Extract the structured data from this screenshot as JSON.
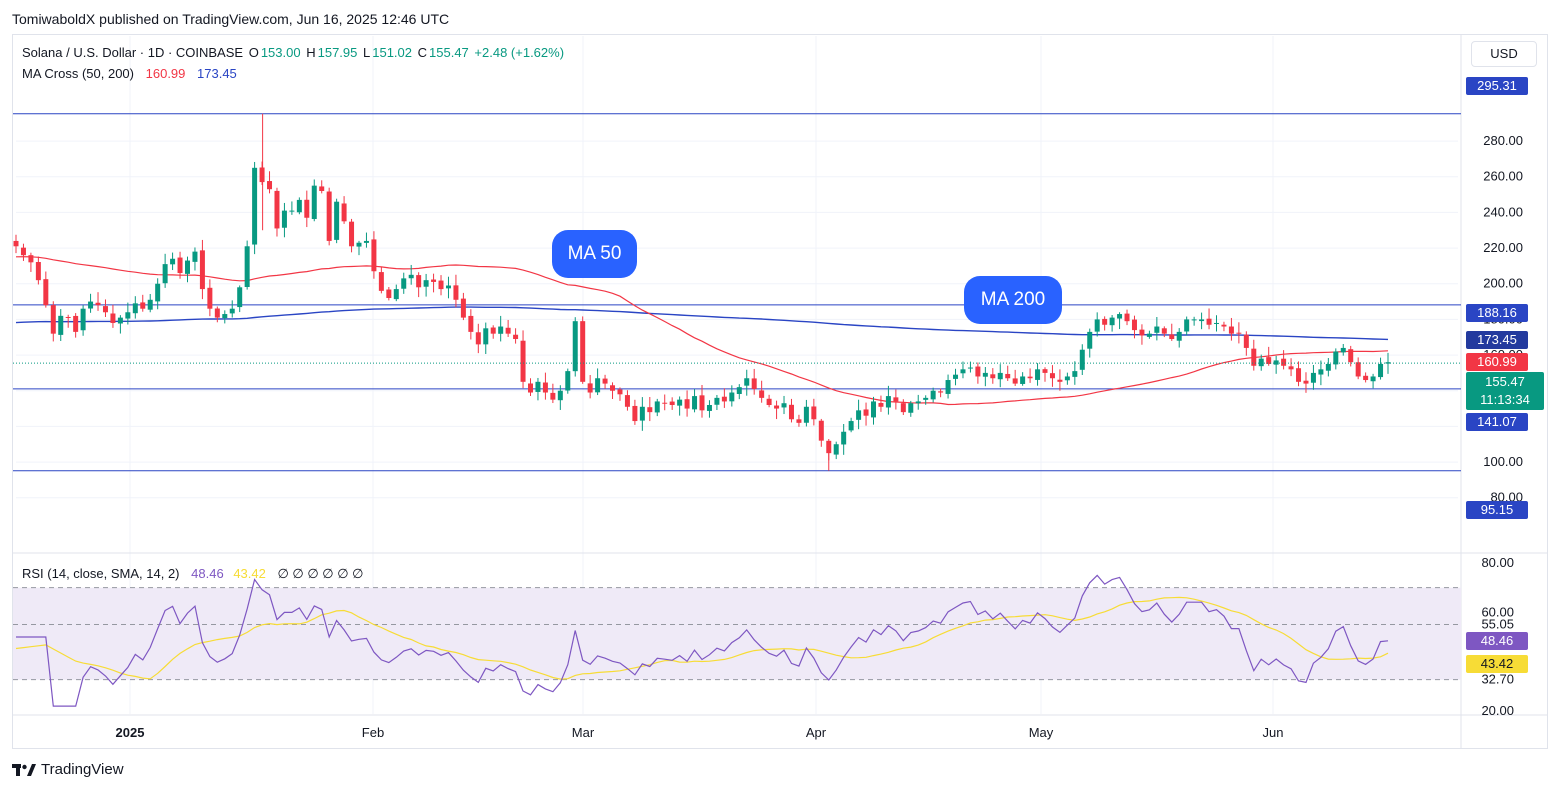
{
  "publisher": "TomiwaboldX published on TradingView.com, Jun 16, 2025 12:46 UTC",
  "legend": {
    "symbol": "Solana / U.S. Dollar · 1D · COINBASE",
    "open_label": "O",
    "open": "153.00",
    "high_label": "H",
    "high": "157.95",
    "low_label": "L",
    "low": "151.02",
    "close_label": "C",
    "close": "155.47",
    "change": "+2.48 (+1.62%)",
    "ma_label": "MA Cross (50, 200)",
    "ma50_value": "160.99",
    "ma200_value": "173.45",
    "rsi_label": "RSI (14, close, SMA, 14, 2)",
    "rsi_value": "48.46",
    "rsi_sma_value": "43.42",
    "rsi_extras": "∅ ∅ ∅ ∅ ∅ ∅"
  },
  "currency_button": "USD",
  "callouts": {
    "ma50": "MA 50",
    "ma200": "MA 200"
  },
  "price_tags": {
    "high_line": "295.31",
    "upper_line": "188.16",
    "ma200": "173.45",
    "ma50": "160.99",
    "last_price": "155.47",
    "countdown": "11:13:34",
    "lower_line": "141.07",
    "low_line": "95.15"
  },
  "rsi_tags": {
    "rsi": "48.46",
    "rsi_sma": "43.42"
  },
  "brand": "TradingView",
  "colors": {
    "up": "#089981",
    "down": "#f23645",
    "ma50": "#f23645",
    "ma200": "#2a45c4",
    "hline": "#2a45c4",
    "rsi": "#7e57c2",
    "rsi_sma": "#f7dc36",
    "rsi_band": "#efeaf7"
  },
  "chart_data": [
    {
      "type": "candlestick",
      "title": "Solana / U.S. Dollar · 1D · COINBASE",
      "x_tick_labels": [
        "2025",
        "Feb",
        "Mar",
        "Apr",
        "May",
        "Jun"
      ],
      "y_tick_labels": [
        "80.00",
        "100.00",
        "120.00",
        "140.00",
        "160.00",
        "180.00",
        "200.00",
        "220.00",
        "240.00",
        "260.00",
        "280.00"
      ],
      "ylim": [
        72,
        312
      ],
      "horizontal_lines": [
        295.31,
        188.16,
        141.07,
        95.15
      ],
      "last_close": 155.47,
      "ma50_last": 160.99,
      "ma200_last": 173.45,
      "close": [
        221,
        216,
        212,
        202,
        188,
        172,
        182,
        181,
        173,
        186,
        190,
        188,
        184,
        178,
        181,
        184,
        189,
        186,
        191,
        200,
        211,
        214,
        206,
        213,
        218,
        197,
        186,
        181,
        183,
        186,
        198,
        221,
        265,
        257,
        253,
        231,
        241,
        241,
        247,
        237,
        255,
        252,
        224,
        246,
        235,
        221,
        223,
        224,
        207,
        196,
        192,
        197,
        203,
        205,
        198,
        202,
        201,
        197,
        199,
        191,
        181,
        173,
        166,
        175,
        172,
        176,
        172,
        169,
        145,
        139,
        145,
        139,
        135,
        140,
        151,
        179,
        145,
        139,
        147,
        144,
        140,
        138,
        131,
        123,
        131,
        128,
        134,
        133,
        132,
        135,
        130,
        137,
        129,
        132,
        136,
        134,
        139,
        142,
        147,
        141,
        136,
        132,
        130,
        133,
        124,
        122,
        131,
        124,
        112,
        105,
        110,
        117,
        123,
        129,
        126,
        134,
        131,
        137,
        134,
        128,
        133,
        134,
        136,
        140,
        139,
        146,
        149,
        152,
        153,
        148,
        150,
        147,
        150,
        147,
        144,
        148,
        147,
        152,
        150,
        147,
        145,
        148,
        151,
        163,
        173,
        180,
        177,
        181,
        183,
        179,
        174,
        171,
        172,
        176,
        172,
        169,
        173,
        180,
        180,
        180,
        177,
        178,
        176,
        172,
        172,
        164,
        154,
        158,
        155,
        157,
        154,
        152,
        145,
        144,
        150,
        152,
        155,
        162,
        164,
        156,
        148,
        146,
        148,
        155,
        156
      ]
    },
    {
      "type": "line",
      "title": "RSI (14, close, SMA, 14, 2)",
      "y_tick_labels": [
        "20.00",
        "32.70",
        "55.05",
        "60.00",
        "80.00"
      ],
      "ylim": [
        20,
        80
      ],
      "bands": [
        32.7,
        55.05,
        70
      ],
      "series": [
        {
          "name": "RSI",
          "last": 48.46
        },
        {
          "name": "SMA",
          "last": 43.42
        }
      ]
    }
  ]
}
